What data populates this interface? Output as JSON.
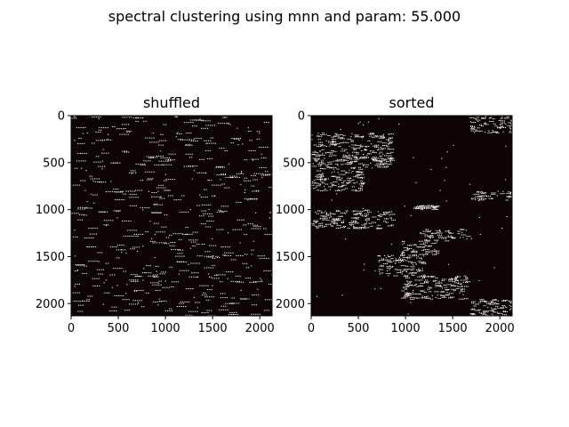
{
  "figure": {
    "suptitle": "spectral clustering using mnn and param: 55.000"
  },
  "chart_data": [
    {
      "type": "heatmap",
      "title": "shuffled",
      "xlabel": "",
      "ylabel": "",
      "xlim": [
        0,
        2130
      ],
      "ylim": [
        2130,
        0
      ],
      "xticks": [
        0,
        500,
        1000,
        1500,
        2000
      ],
      "yticks": [
        0,
        500,
        1000,
        1500,
        2000
      ],
      "grid": false,
      "background_color": "#0d0403",
      "point_color": "#ffffff",
      "pattern": "binary mutual-nearest-neighbour adjacency matrix, rows/columns shuffled: sparse white points scattered uniformly, with short horizontal streaks"
    },
    {
      "type": "heatmap",
      "title": "sorted",
      "xlabel": "",
      "ylabel": "",
      "xlim": [
        0,
        2130
      ],
      "ylim": [
        2130,
        0
      ],
      "xticks": [
        0,
        500,
        1000,
        1500,
        2000
      ],
      "yticks": [
        0,
        500,
        1000,
        1500,
        2000
      ],
      "grid": false,
      "background_color": "#0d0403",
      "point_color": "#ffffff",
      "pattern": "same matrix with rows/columns sorted by cluster label: white points concentrated in blocks",
      "blocks": [
        {
          "rows": [
            0,
            180
          ],
          "cols": [
            1680,
            2130
          ]
        },
        {
          "rows": [
            180,
            560
          ],
          "cols": [
            0,
            850
          ]
        },
        {
          "rows": [
            560,
            800
          ],
          "cols": [
            0,
            550
          ]
        },
        {
          "rows": [
            800,
            900
          ],
          "cols": [
            1680,
            2130
          ]
        },
        {
          "rows": [
            950,
            1000
          ],
          "cols": [
            1080,
            1330
          ]
        },
        {
          "rows": [
            1000,
            1200
          ],
          "cols": [
            0,
            850
          ]
        },
        {
          "rows": [
            1200,
            1330
          ],
          "cols": [
            1150,
            1650
          ]
        },
        {
          "rows": [
            1330,
            1480
          ],
          "cols": [
            950,
            1350
          ]
        },
        {
          "rows": [
            1480,
            1700
          ],
          "cols": [
            700,
            1200
          ]
        },
        {
          "rows": [
            1700,
            1950
          ],
          "cols": [
            950,
            1650
          ]
        },
        {
          "rows": [
            1950,
            2130
          ],
          "cols": [
            1680,
            2130
          ]
        }
      ]
    }
  ]
}
